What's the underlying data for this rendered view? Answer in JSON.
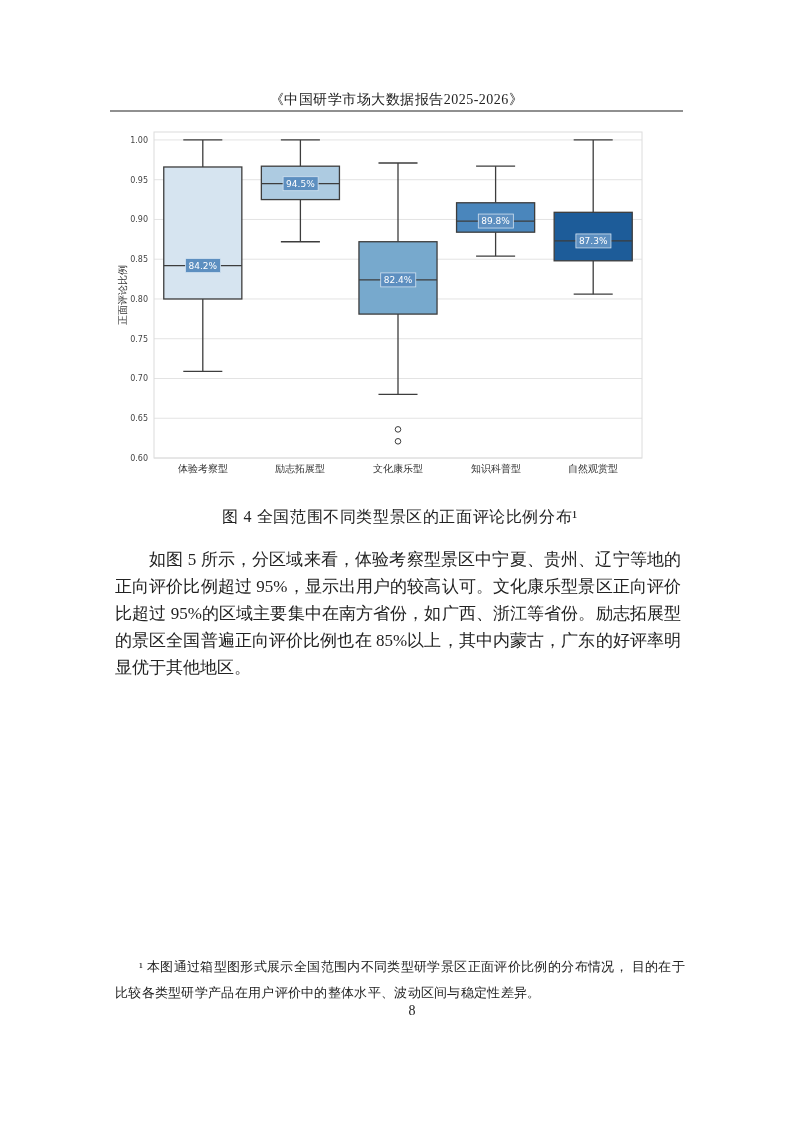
{
  "chart_data": {
    "type": "box",
    "title": "图 4 全国范围不同类型景区的正面评论比例分布¹",
    "ylabel": "正面评论比例",
    "categories": [
      "体验考察型",
      "励志拓展型",
      "文化康乐型",
      "知识科普型",
      "自然观赏型"
    ],
    "boxes": [
      {
        "low": 0.709,
        "q1": 0.8,
        "median": 0.842,
        "q3": 0.966,
        "high": 1.0
      },
      {
        "low": 0.872,
        "q1": 0.925,
        "median": 0.945,
        "q3": 0.967,
        "high": 1.0
      },
      {
        "low": 0.68,
        "q1": 0.781,
        "median": 0.824,
        "q3": 0.872,
        "high": 0.971,
        "outliers": [
          0.636,
          0.621
        ]
      },
      {
        "low": 0.854,
        "q1": 0.884,
        "median": 0.898,
        "q3": 0.921,
        "high": 0.967
      },
      {
        "low": 0.806,
        "q1": 0.848,
        "median": 0.873,
        "q3": 0.909,
        "high": 1.0
      }
    ],
    "colors": [
      "#d6e4f0",
      "#adcbe1",
      "#77a9cd",
      "#4a86bc",
      "#1d5c99"
    ],
    "ylim": [
      0.6,
      1.01
    ],
    "yticks": [
      {
        "value": 0.6,
        "label": "0.60"
      },
      {
        "value": 0.65,
        "label": "0.65"
      },
      {
        "value": 0.7,
        "label": "0.70"
      },
      {
        "value": 0.75,
        "label": "0.75"
      },
      {
        "value": 0.8,
        "label": "0.80"
      },
      {
        "value": 0.85,
        "label": "0.85"
      },
      {
        "value": 0.9,
        "label": "0.90"
      },
      {
        "value": 0.95,
        "label": "0.95"
      },
      {
        "value": 1.0,
        "label": "1.00"
      }
    ],
    "grid": "y",
    "annotations": [
      "《中国研学市场大数据报告2025-2026》",
      {
        "text": "84.2%",
        "x": "体验考察型",
        "y": 0.842
      },
      {
        "text": "94.5%",
        "x": "励志拓展型",
        "y": 0.945
      },
      {
        "text": "82.4%",
        "x": "文化康乐型",
        "y": 0.824
      },
      {
        "text": "89.8%",
        "x": "知识科普型",
        "y": 0.898
      },
      {
        "text": "87.3%",
        "x": "自然观赏型",
        "y": 0.873
      },
      "如图 5 所示，分区域来看，体验考察型景区中宁夏、贵州、辽宁等地的正向评价比例超过 95%，显示出用户的较高认可。文化康乐型景区正向评价比超过 95%的区域主要集中在南方省份，如广西、浙江等省份。励志拓展型的景区全国普遍正向评价比例也在 85%以上，其中内蒙古，广东的好评率明显优于其他地区。",
      "¹ 本图通过箱型图形式展示全国范围内不同类型研学景区正面评价比例的分布情况， 目的在于比较各类型研学产品在用户评价中的整体水平、波动区间与稳定性差异。",
      "8"
    ]
  }
}
